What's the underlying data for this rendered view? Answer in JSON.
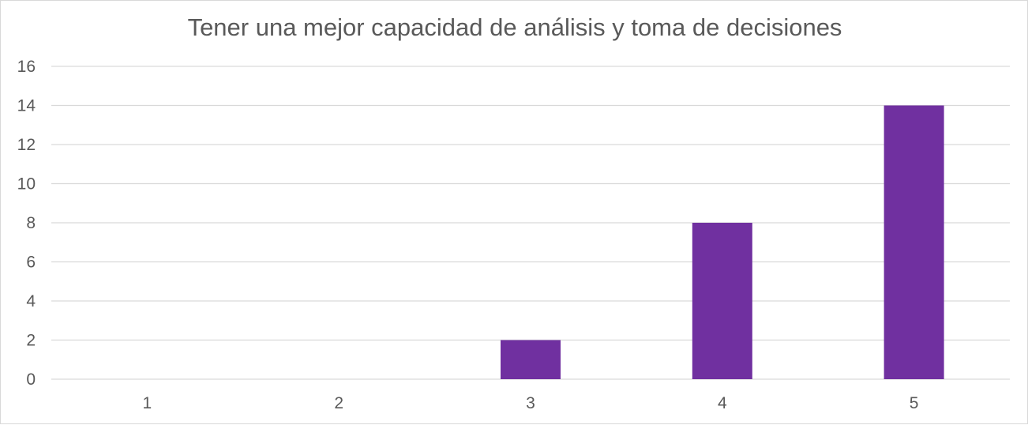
{
  "chart_data": {
    "type": "bar",
    "title": "Tener una mejor capacidad de análisis y toma de decisiones",
    "categories": [
      "1",
      "2",
      "3",
      "4",
      "5"
    ],
    "values": [
      0,
      0,
      2,
      8,
      14
    ],
    "ylim": [
      0,
      16
    ],
    "yticks": [
      "0",
      "2",
      "4",
      "6",
      "8",
      "10",
      "12",
      "14",
      "16"
    ],
    "xlabel": "",
    "ylabel": "",
    "grid": true,
    "legend": "none",
    "bar_color": "#7030a0",
    "grid_color": "#d9d9d9"
  }
}
